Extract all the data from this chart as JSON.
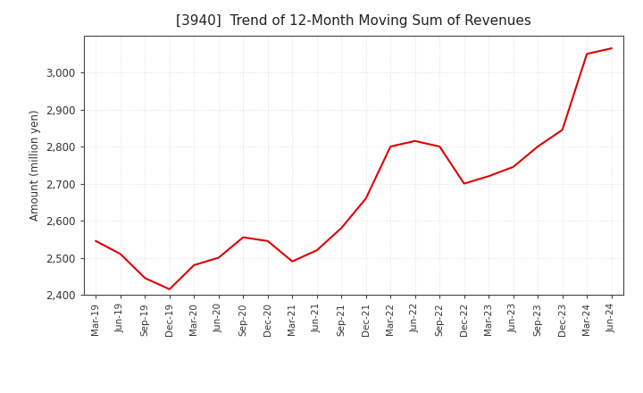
{
  "title": "[3940]  Trend of 12-Month Moving Sum of Revenues",
  "ylabel": "Amount (million yen)",
  "line_color": "#dd0000",
  "background_color": "#ffffff",
  "plot_bg_color": "#ffffff",
  "grid_color": "#bbbbbb",
  "ylim": [
    2400,
    3100
  ],
  "yticks": [
    2400,
    2500,
    2600,
    2700,
    2800,
    2900,
    3000
  ],
  "x_labels": [
    "Mar-19",
    "Jun-19",
    "Sep-19",
    "Dec-19",
    "Mar-20",
    "Jun-20",
    "Sep-20",
    "Dec-20",
    "Mar-21",
    "Jun-21",
    "Sep-21",
    "Dec-21",
    "Mar-22",
    "Jun-22",
    "Sep-22",
    "Dec-22",
    "Mar-23",
    "Jun-23",
    "Sep-23",
    "Dec-23",
    "Mar-24",
    "Jun-24"
  ],
  "values": [
    2545,
    2510,
    2445,
    2415,
    2480,
    2500,
    2555,
    2545,
    2490,
    2520,
    2580,
    2660,
    2800,
    2815,
    2800,
    2700,
    2720,
    2745,
    2800,
    2845,
    3050,
    3065
  ]
}
